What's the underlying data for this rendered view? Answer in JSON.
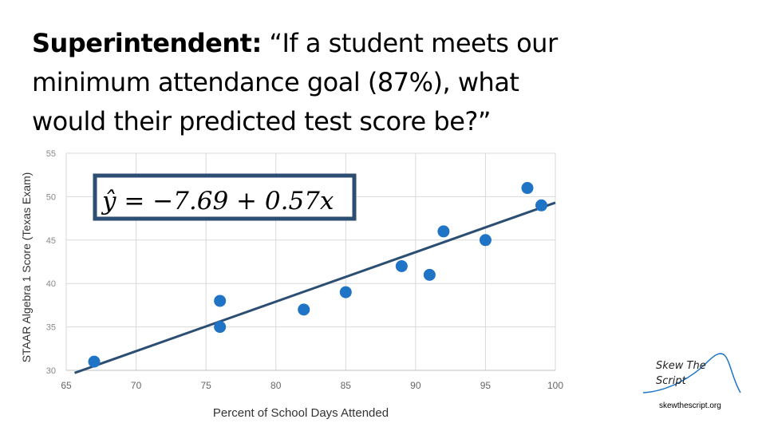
{
  "slide": {
    "speaker": "Superintendent:",
    "quote": "“If a student meets our minimum attendance goal (87%), what would their predicted test score be?”",
    "logo_line1": "Skew The",
    "logo_line2": "Script",
    "website": "skewthescript.org"
  },
  "chart_data": {
    "type": "scatter",
    "title": "",
    "xlabel": "Percent of School Days Attended",
    "ylabel": "STAAR Algebra 1 Score (Texas Exam)",
    "xlim": [
      65,
      100
    ],
    "ylim": [
      30,
      55
    ],
    "xticks": [
      65,
      70,
      75,
      80,
      85,
      90,
      95,
      100
    ],
    "yticks": [
      30,
      35,
      40,
      45,
      50,
      55
    ],
    "grid": true,
    "points": [
      {
        "x": 67,
        "y": 31
      },
      {
        "x": 76,
        "y": 38
      },
      {
        "x": 76,
        "y": 35
      },
      {
        "x": 82,
        "y": 37
      },
      {
        "x": 85,
        "y": 39
      },
      {
        "x": 89,
        "y": 42
      },
      {
        "x": 91,
        "y": 41
      },
      {
        "x": 92,
        "y": 46
      },
      {
        "x": 95,
        "y": 45
      },
      {
        "x": 98,
        "y": 51
      },
      {
        "x": 99,
        "y": 49
      }
    ],
    "regression": {
      "intercept": -7.69,
      "slope": 0.57
    },
    "equation": "ŷ = −7.69 + 0.57x",
    "colors": {
      "point": "#1f74c6",
      "line": "#2c4e72",
      "grid": "#d9d9d9",
      "box": "#2c4e72"
    }
  }
}
